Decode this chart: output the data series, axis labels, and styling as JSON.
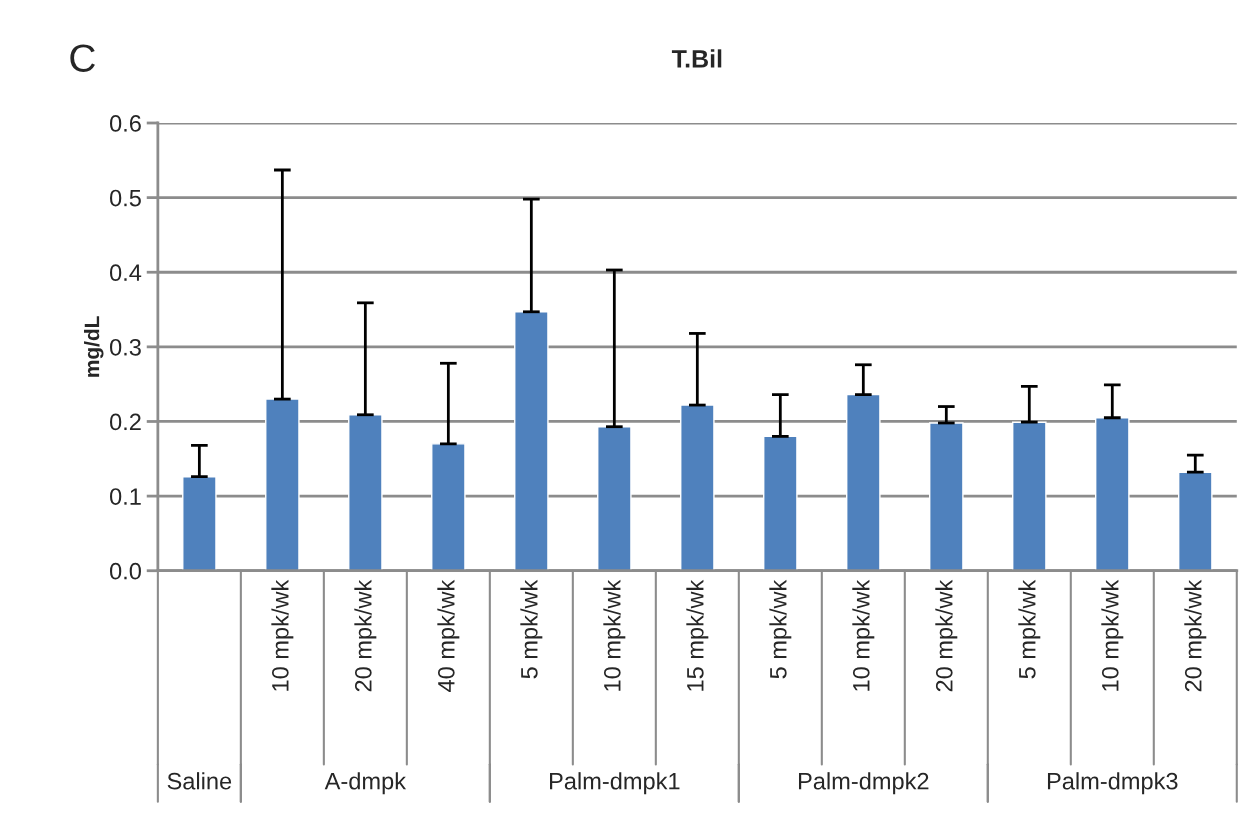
{
  "chart_data": {
    "type": "bar",
    "title": "T.Bil",
    "ylabel": "mg/dL",
    "categories": [
      null,
      "10 mpk/wk",
      "20 mpk/wk",
      "40 mpk/wk",
      "5 mpk/wk",
      "10 mpk/wk",
      "15 mpk/wk",
      "5 mpk/wk",
      "10 mpk/wk",
      "20 mpk/wk",
      "5 mpk/wk",
      "10 mpk/wk",
      "20 mpk/wk"
    ],
    "values": [
      0.126,
      0.23,
      0.209,
      0.17,
      0.347,
      0.193,
      0.222,
      0.18,
      0.236,
      0.198,
      0.199,
      0.205,
      0.132
    ],
    "errors": [
      [
        0.126,
        0.168
      ],
      [
        0.23,
        0.537
      ],
      [
        0.209,
        0.359
      ],
      [
        0.17,
        0.278
      ],
      [
        0.347,
        0.498
      ],
      [
        0.193,
        0.403
      ],
      [
        0.222,
        0.318
      ],
      [
        0.18,
        0.236
      ],
      [
        0.236,
        0.276
      ],
      [
        0.198,
        0.22
      ],
      [
        0.199,
        0.247
      ],
      [
        0.205,
        0.249
      ],
      [
        0.132,
        0.155
      ]
    ],
    "color": "#4f81bd",
    "ylim": [
      0,
      0.6
    ],
    "yticks": [
      {
        "value": 0,
        "label": "0.0"
      },
      0.1,
      0.2,
      0.3,
      0.4,
      0.5,
      0.6
    ],
    "grid": "y",
    "annotations": [
      "C",
      "Saline",
      "A-dmpk",
      "Palm-dmpk1",
      "Palm-dmpk2",
      "Palm-dmpk3"
    ]
  }
}
